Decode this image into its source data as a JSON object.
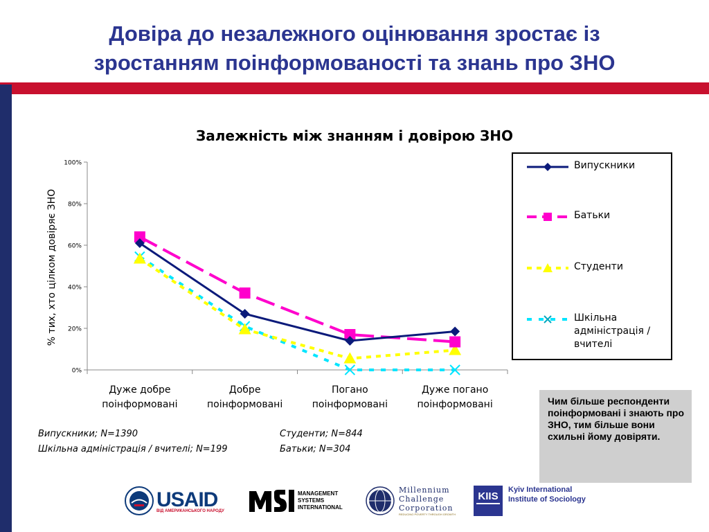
{
  "slide": {
    "title_line1": "Довіра до незалежного оцінювання зростає із",
    "title_line2": "зростанням поінформованості та знань про ЗНО"
  },
  "chart_data": {
    "type": "line",
    "title": "Залежність між знанням і довірою ЗНО",
    "ylabel": "% тих, хто цілком довіряє ЗНО",
    "xlabel": "",
    "ylim": [
      0,
      100
    ],
    "yticks": [
      "0%",
      "20%",
      "40%",
      "60%",
      "80%",
      "100%"
    ],
    "ytick_values": [
      0,
      20,
      40,
      60,
      80,
      100
    ],
    "categories": [
      [
        "Дуже добре",
        "поінформовані"
      ],
      [
        "Добре",
        "поінформовані"
      ],
      [
        "Погано",
        "поінформовані"
      ],
      [
        "Дуже погано",
        "поінформовані"
      ]
    ],
    "grid": false,
    "legend_position": "right",
    "series": [
      {
        "name": "Випускники",
        "values": [
          61,
          27,
          14,
          18.5
        ],
        "color": "#0b1a7a",
        "dash": "",
        "marker": "diamond"
      },
      {
        "name": "Батьки",
        "values": [
          64,
          37,
          17,
          13.5
        ],
        "color": "#ff00cc",
        "dash": "28,10",
        "marker": "square"
      },
      {
        "name": "Студенти",
        "values": [
          53.5,
          19.5,
          5.5,
          9.5
        ],
        "color": "#ffff00",
        "dash": "7,7",
        "marker": "triangle"
      },
      {
        "name": "Шкільна адміністрація / вчителі",
        "values": [
          54.5,
          21,
          0,
          0
        ],
        "color": "#00e5ff",
        "dash": "7,10",
        "marker": "x"
      }
    ]
  },
  "legend": {
    "items": [
      {
        "lines": [
          "Випускники"
        ]
      },
      {
        "lines": [
          "Батьки"
        ]
      },
      {
        "lines": [
          "Студенти"
        ]
      },
      {
        "lines": [
          "Шкільна",
          "адміністрація /",
          "вчителі"
        ]
      }
    ]
  },
  "notes": {
    "n1": "Випускники; N=1390",
    "n2": "Студенти; N=844",
    "n3": "Шкільна адміністрація / вчителі; N=199",
    "n4": "Батьки; N=304"
  },
  "callout": {
    "text": "Чим більше респонденти поінформовані і знають про ЗНО, тим більше вони схильні йому довіряти."
  },
  "logos": {
    "usaid": "USAID",
    "usaid_sub": "ВІД АМЕРИКАНСЬКОГО НАРОДУ",
    "msi_line1": "MANAGEMENT",
    "msi_line2": "SYSTEMS",
    "msi_line3": "INTERNATIONAL",
    "mcc_line1": "Millennium",
    "mcc_line2": "Challenge",
    "mcc_line3": "Corporation",
    "mcc_sub": "REDUCING POVERTY THROUGH GROWTH",
    "kiis_line1": "Kyiv International",
    "kiis_line2": "Institute of Sociology",
    "kiis_mark": "KIIS",
    "colors": {
      "usaid_blue": "#0d3a7a",
      "usaid_red": "#c8102e",
      "kiis_blue": "#2b3590"
    }
  }
}
